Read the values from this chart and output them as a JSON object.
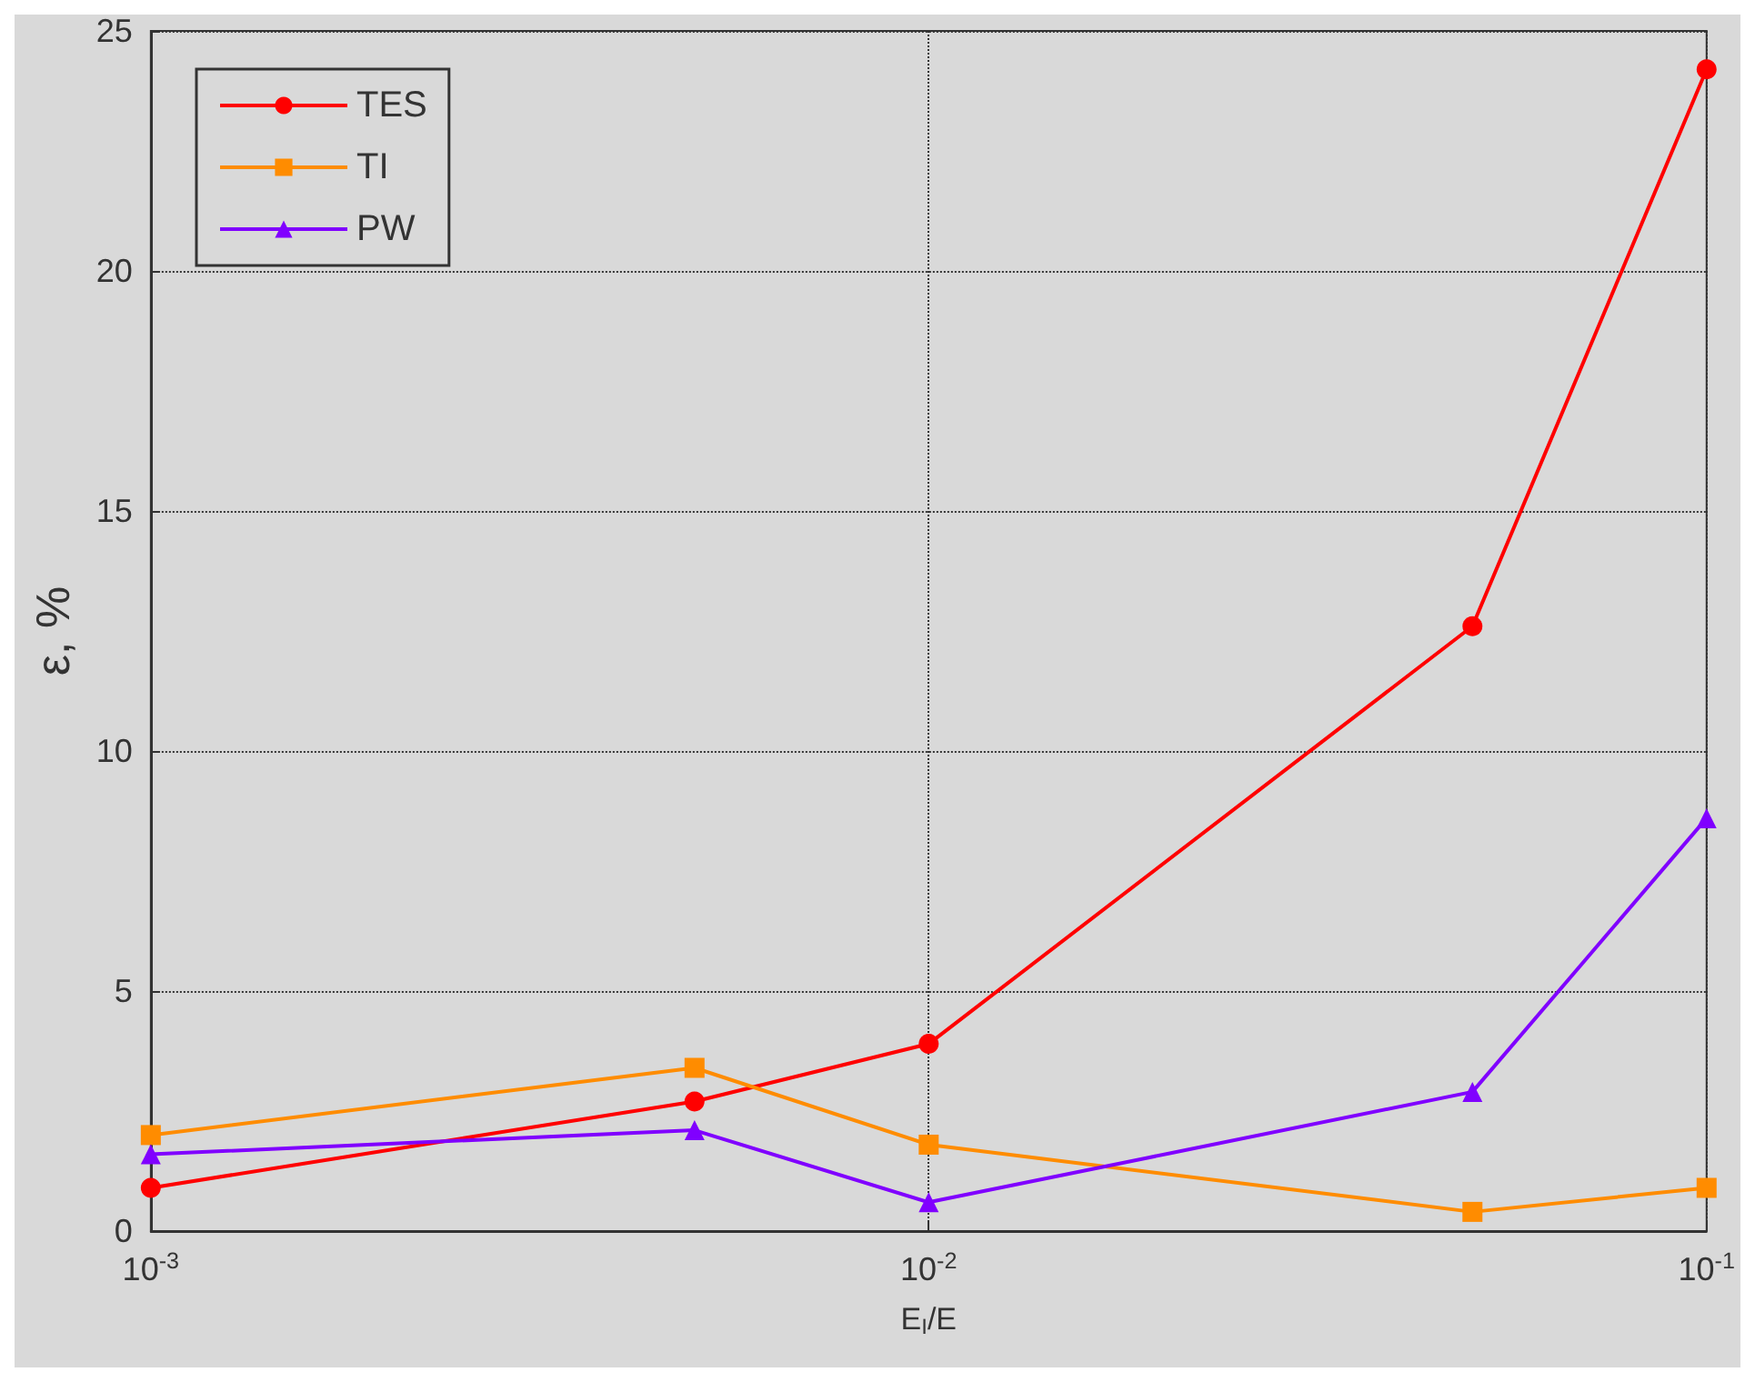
{
  "chart_data": {
    "type": "line",
    "xlabel": "E$_{I}$/E",
    "ylabel": "ε, %",
    "log": "x",
    "xlim": [
      0.001,
      0.1
    ],
    "xticks": [
      {
        "value": 0.001,
        "label": "10$^{-3}$"
      },
      {
        "value": 0.01,
        "label": "10$^{-2}$"
      },
      {
        "value": 0.1,
        "label": "10$^{-1}$"
      }
    ],
    "ylim": [
      0,
      25
    ],
    "yticks": [
      0,
      5,
      10,
      15,
      20,
      25
    ],
    "grid": true,
    "legend": "top left",
    "x": [
      0.001,
      0.005,
      0.01,
      0.05,
      0.1
    ],
    "series": [
      {
        "name": "TES",
        "color": "#ff0000",
        "marker": "circle",
        "values": [
          0.9,
          2.7,
          3.9,
          12.6,
          24.2
        ]
      },
      {
        "name": "TI",
        "color": "#ff8c00",
        "marker": "square",
        "values": [
          2.0,
          3.4,
          1.8,
          0.4,
          0.9
        ]
      },
      {
        "name": "PW",
        "color": "#8000ff",
        "marker": "triangle",
        "values": [
          1.6,
          2.1,
          0.6,
          2.9,
          8.6
        ]
      }
    ]
  }
}
